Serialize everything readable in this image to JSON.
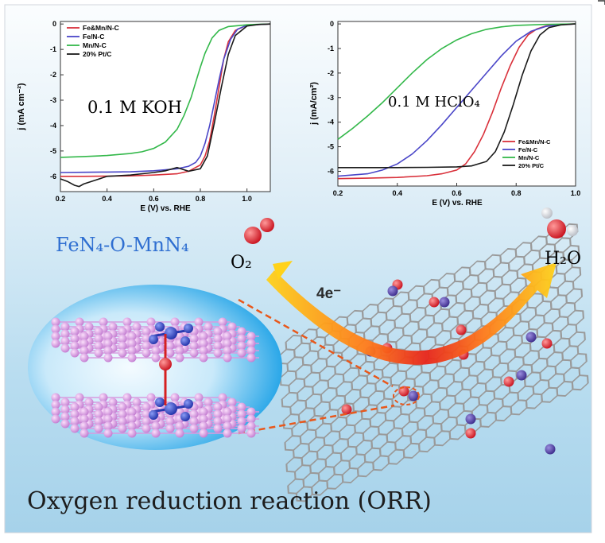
{
  "colors": {
    "fe_mn": "#d9303a",
    "fe": "#4a46c8",
    "mn": "#33b84a",
    "pt": "#1a1a1a",
    "accent_blue": "#2f6fd1"
  },
  "chart_data": [
    {
      "type": "line",
      "xlabel": "E (V) vs. RHE",
      "ylabel": "j (mA cm⁻²)",
      "annotation": "0.1 M KOH",
      "xlim": [
        0.2,
        1.1
      ],
      "ylim": [
        -6.6,
        0.1
      ],
      "xticks": [
        "0.2",
        "0.4",
        "0.6",
        "0.8",
        "1.0"
      ],
      "yticks": [
        "0",
        "-1",
        "-2",
        "-3",
        "-4",
        "-5",
        "-6"
      ],
      "legend_position": "top-left",
      "series": [
        {
          "name": "Fe&Mn/N-C",
          "color_key": "fe_mn",
          "x": [
            0.2,
            0.3,
            0.4,
            0.5,
            0.6,
            0.7,
            0.75,
            0.8,
            0.82,
            0.84,
            0.86,
            0.88,
            0.9,
            0.92,
            0.95,
            1.0,
            1.05,
            1.1
          ],
          "y": [
            -6.0,
            -6.0,
            -5.99,
            -5.98,
            -5.95,
            -5.9,
            -5.8,
            -5.55,
            -5.2,
            -4.6,
            -3.6,
            -2.5,
            -1.4,
            -0.7,
            -0.25,
            -0.05,
            -0.02,
            0
          ]
        },
        {
          "name": "Fe/N-C",
          "color_key": "fe",
          "x": [
            0.2,
            0.3,
            0.4,
            0.5,
            0.6,
            0.7,
            0.75,
            0.78,
            0.8,
            0.82,
            0.84,
            0.86,
            0.88,
            0.9,
            0.93,
            0.96,
            1.0,
            1.05,
            1.1
          ],
          "y": [
            -5.85,
            -5.84,
            -5.83,
            -5.82,
            -5.78,
            -5.7,
            -5.6,
            -5.45,
            -5.2,
            -4.7,
            -4.0,
            -3.1,
            -2.2,
            -1.4,
            -0.6,
            -0.2,
            -0.05,
            -0.02,
            0
          ]
        },
        {
          "name": "Mn/N-C",
          "color_key": "mn",
          "x": [
            0.2,
            0.3,
            0.4,
            0.5,
            0.55,
            0.6,
            0.65,
            0.7,
            0.73,
            0.76,
            0.78,
            0.8,
            0.82,
            0.85,
            0.88,
            0.92,
            1.0,
            1.05,
            1.1
          ],
          "y": [
            -5.25,
            -5.22,
            -5.18,
            -5.1,
            -5.03,
            -4.9,
            -4.65,
            -4.15,
            -3.6,
            -2.9,
            -2.3,
            -1.7,
            -1.15,
            -0.55,
            -0.25,
            -0.1,
            -0.03,
            -0.01,
            0
          ]
        },
        {
          "name": "20% Pt/C",
          "color_key": "pt",
          "x": [
            0.2,
            0.23,
            0.26,
            0.28,
            0.3,
            0.35,
            0.4,
            0.5,
            0.6,
            0.65,
            0.7,
            0.75,
            0.8,
            0.83,
            0.86,
            0.89,
            0.92,
            0.95,
            1.0,
            1.05,
            1.1
          ],
          "y": [
            -6.1,
            -6.2,
            -6.35,
            -6.4,
            -6.3,
            -6.15,
            -6.0,
            -5.95,
            -5.85,
            -5.78,
            -5.65,
            -5.8,
            -5.7,
            -5.2,
            -3.9,
            -2.5,
            -1.2,
            -0.45,
            -0.08,
            -0.02,
            0
          ]
        }
      ]
    },
    {
      "type": "line",
      "xlabel": "E (V) vs. RHE",
      "ylabel": "j (mA/cm²)",
      "annotation": "0.1 M HClO₄",
      "xlim": [
        0.2,
        1.0
      ],
      "ylim": [
        -6.6,
        0.1
      ],
      "xticks": [
        "0.2",
        "0.4",
        "0.6",
        "0.8",
        "1.0"
      ],
      "yticks": [
        "0",
        "-1",
        "-2",
        "-3",
        "-4",
        "-5",
        "-6"
      ],
      "legend_position": "bottom-right",
      "series": [
        {
          "name": "Fe&Mn/N-C",
          "color_key": "fe_mn",
          "x": [
            0.2,
            0.3,
            0.4,
            0.5,
            0.55,
            0.6,
            0.63,
            0.66,
            0.69,
            0.72,
            0.75,
            0.78,
            0.81,
            0.84,
            0.87,
            0.9,
            0.95,
            1.0
          ],
          "y": [
            -6.3,
            -6.28,
            -6.25,
            -6.18,
            -6.1,
            -5.95,
            -5.7,
            -5.2,
            -4.5,
            -3.6,
            -2.6,
            -1.7,
            -0.95,
            -0.45,
            -0.2,
            -0.08,
            -0.02,
            0
          ]
        },
        {
          "name": "Fe/N-C",
          "color_key": "fe",
          "x": [
            0.2,
            0.3,
            0.35,
            0.4,
            0.45,
            0.5,
            0.55,
            0.6,
            0.65,
            0.7,
            0.75,
            0.8,
            0.85,
            0.9,
            0.95,
            1.0
          ],
          "y": [
            -6.2,
            -6.1,
            -5.95,
            -5.7,
            -5.3,
            -4.75,
            -4.1,
            -3.4,
            -2.7,
            -2.0,
            -1.3,
            -0.7,
            -0.3,
            -0.1,
            -0.03,
            0
          ]
        },
        {
          "name": "Mn/N-C",
          "color_key": "mn",
          "x": [
            0.2,
            0.25,
            0.3,
            0.35,
            0.4,
            0.45,
            0.5,
            0.55,
            0.6,
            0.65,
            0.7,
            0.75,
            0.8,
            0.9,
            1.0
          ],
          "y": [
            -4.7,
            -4.25,
            -3.75,
            -3.2,
            -2.6,
            -2.0,
            -1.45,
            -1.0,
            -0.65,
            -0.4,
            -0.22,
            -0.12,
            -0.06,
            -0.02,
            0
          ]
        },
        {
          "name": "20% Pt/C",
          "color_key": "pt",
          "x": [
            0.2,
            0.3,
            0.4,
            0.5,
            0.6,
            0.65,
            0.7,
            0.73,
            0.76,
            0.79,
            0.82,
            0.85,
            0.88,
            0.91,
            0.95,
            1.0
          ],
          "y": [
            -5.85,
            -5.85,
            -5.85,
            -5.84,
            -5.82,
            -5.78,
            -5.6,
            -5.2,
            -4.4,
            -3.3,
            -2.1,
            -1.1,
            -0.45,
            -0.15,
            -0.04,
            0
          ]
        }
      ]
    }
  ],
  "scheme": {
    "catalyst_label": "FeN₄-O-MnN₄",
    "reactant": "O₂",
    "product": "H₂O",
    "electrons": "4e⁻",
    "title": "Oxygen reduction reaction (ORR)"
  }
}
